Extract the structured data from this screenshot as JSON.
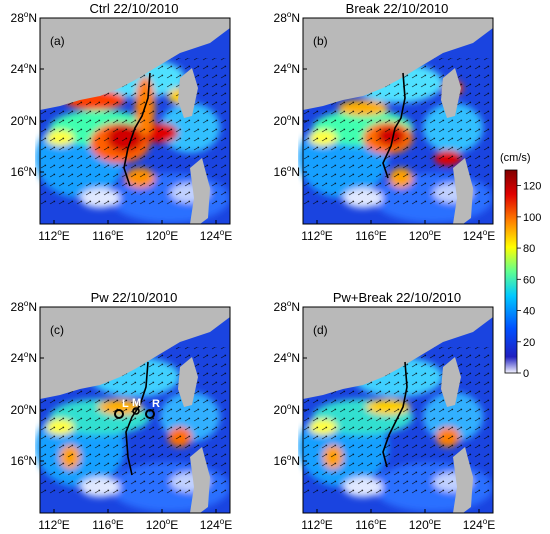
{
  "panels": [
    {
      "title": "Ctrl 22/10/2010",
      "label": "(a)"
    },
    {
      "title": "Break 22/10/2010",
      "label": "(b)"
    },
    {
      "title": "Pw 22/10/2010",
      "label": "(c)"
    },
    {
      "title": "Pw+Break 22/10/2010",
      "label": "(d)"
    }
  ],
  "lat_ticks": [
    "28",
    "24",
    "20",
    "16"
  ],
  "lat_suffix": "N",
  "lon_ticks": [
    "112",
    "116",
    "120",
    "124"
  ],
  "lon_suffix": "E",
  "degree_symbol": "o",
  "stations": {
    "L": "L",
    "M": "M",
    "R": "R"
  },
  "colorbar": {
    "unit": "(cm/s)",
    "ticks": [
      "120",
      "100",
      "80",
      "60",
      "40",
      "20",
      "0"
    ],
    "range": [
      0,
      130
    ],
    "colormap": [
      "#f4f4ff",
      "#0000b0",
      "#0060ff",
      "#00d0ff",
      "#60ff90",
      "#ffff00",
      "#ff8000",
      "#e00000",
      "#800000"
    ]
  },
  "colors": {
    "land": "#b9b9b9",
    "arrow": "#000000",
    "track": "#000000"
  }
}
